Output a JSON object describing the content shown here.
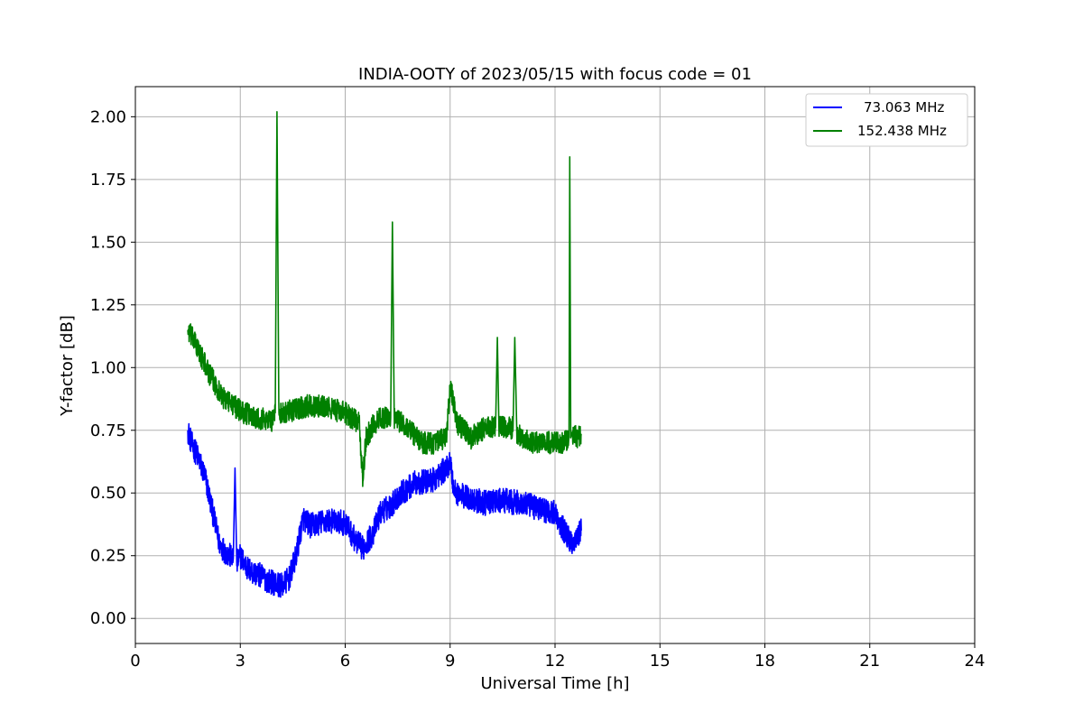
{
  "chart_data": {
    "type": "line",
    "title": "INDIA-OOTY of 2023/05/15 with focus code = 01",
    "xlabel": "Universal Time [h]",
    "ylabel": "Y-factor [dB]",
    "xlim": [
      0,
      24
    ],
    "ylim": [
      -0.1,
      2.12
    ],
    "xticks": [
      0,
      3,
      6,
      9,
      12,
      15,
      18,
      21,
      24
    ],
    "xtick_labels": [
      "0",
      "3",
      "6",
      "9",
      "12",
      "15",
      "18",
      "21",
      "24"
    ],
    "yticks": [
      0.0,
      0.25,
      0.5,
      0.75,
      1.0,
      1.25,
      1.5,
      1.75,
      2.0
    ],
    "ytick_labels": [
      "0.00",
      "0.25",
      "0.50",
      "0.75",
      "1.00",
      "1.25",
      "1.50",
      "1.75",
      "2.00"
    ],
    "grid": true,
    "legend_position": "top-right",
    "series": [
      {
        "name": "73.063 MHz",
        "color": "#0000ff",
        "noise": 0.05,
        "x": [
          1.5,
          1.6,
          1.8,
          2.0,
          2.2,
          2.4,
          2.6,
          2.8,
          2.85,
          2.9,
          3.0,
          3.2,
          3.4,
          3.6,
          3.8,
          4.0,
          4.2,
          4.4,
          4.6,
          4.7,
          4.8,
          5.0,
          5.5,
          6.0,
          6.3,
          6.5,
          6.8,
          7.0,
          7.3,
          7.6,
          8.0,
          8.5,
          8.9,
          9.0,
          9.1,
          9.2,
          9.5,
          10.0,
          10.5,
          11.0,
          11.5,
          12.0,
          12.3,
          12.5,
          12.75
        ],
        "y": [
          0.75,
          0.7,
          0.64,
          0.56,
          0.43,
          0.3,
          0.26,
          0.24,
          0.6,
          0.22,
          0.25,
          0.2,
          0.18,
          0.17,
          0.15,
          0.14,
          0.13,
          0.16,
          0.25,
          0.33,
          0.4,
          0.37,
          0.39,
          0.38,
          0.31,
          0.28,
          0.34,
          0.42,
          0.45,
          0.5,
          0.54,
          0.55,
          0.6,
          0.63,
          0.52,
          0.5,
          0.48,
          0.46,
          0.47,
          0.46,
          0.44,
          0.42,
          0.34,
          0.3,
          0.35
        ]
      },
      {
        "name": "152.438 MHz",
        "color": "#008000",
        "noise": 0.045,
        "x": [
          1.5,
          1.7,
          1.9,
          2.1,
          2.3,
          2.5,
          2.8,
          3.1,
          3.5,
          3.9,
          4.0,
          4.05,
          4.1,
          4.5,
          5.0,
          5.5,
          6.0,
          6.2,
          6.4,
          6.5,
          6.6,
          6.8,
          7.0,
          7.3,
          7.35,
          7.4,
          7.8,
          8.2,
          8.6,
          8.9,
          9.0,
          9.2,
          9.6,
          10.0,
          10.3,
          10.35,
          10.4,
          10.8,
          10.85,
          10.9,
          11.3,
          11.8,
          12.2,
          12.4,
          12.42,
          12.45,
          12.5,
          12.75
        ],
        "y": [
          1.15,
          1.1,
          1.04,
          0.98,
          0.93,
          0.88,
          0.85,
          0.82,
          0.8,
          0.79,
          0.82,
          2.02,
          0.82,
          0.83,
          0.85,
          0.84,
          0.82,
          0.8,
          0.78,
          0.55,
          0.72,
          0.77,
          0.8,
          0.8,
          1.58,
          0.8,
          0.76,
          0.7,
          0.7,
          0.72,
          0.93,
          0.78,
          0.72,
          0.76,
          0.76,
          1.12,
          0.76,
          0.76,
          1.12,
          0.74,
          0.7,
          0.7,
          0.7,
          0.72,
          1.84,
          0.72,
          0.72,
          0.73
        ]
      }
    ]
  }
}
